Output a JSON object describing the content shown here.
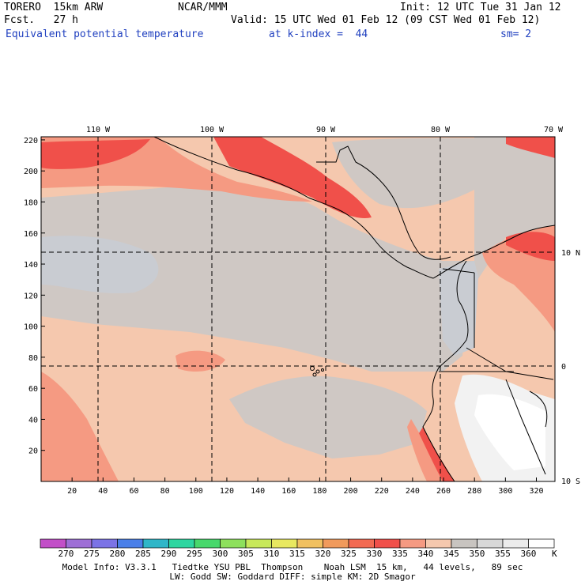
{
  "header": {
    "model": "TORERO  15km ARW",
    "center": "NCAR/MMM",
    "init": "Init: 12 UTC Tue 31 Jan 12",
    "fcst": "Fcst.   27 h",
    "valid": "Valid: 15 UTC Wed 01 Feb 12 (09 CST Wed 01 Feb 12)",
    "field": "Equivalent potential temperature",
    "level": "at k-index =  44",
    "smooth": "sm= 2"
  },
  "map": {
    "top_lon_labels": [
      "110 W",
      "100 W",
      "90 W",
      "80 W",
      "70 W"
    ],
    "right_lat_labels": [
      "10 N",
      "0",
      "10 S"
    ],
    "left_y_ticks": [
      "220",
      "200",
      "180",
      "160",
      "140",
      "120",
      "100",
      "80",
      "60",
      "40",
      "20"
    ],
    "bottom_x_ticks": [
      "20",
      "40",
      "60",
      "80",
      "100",
      "120",
      "140",
      "160",
      "180",
      "200",
      "220",
      "240",
      "260",
      "280",
      "300",
      "320"
    ]
  },
  "colorbar": {
    "labels": [
      "270",
      "275",
      "280",
      "285",
      "290",
      "295",
      "300",
      "305",
      "310",
      "315",
      "320",
      "325",
      "330",
      "335",
      "340",
      "345",
      "350",
      "355",
      "360"
    ],
    "unit": "K",
    "colors": [
      "#c24fc8",
      "#9e6fd6",
      "#7b73e6",
      "#4a7fe8",
      "#2fb6c8",
      "#2ed6a0",
      "#48d86c",
      "#8ee05c",
      "#c8e85a",
      "#e8e860",
      "#f0c060",
      "#f09a5c",
      "#f26a52",
      "#f0504a",
      "#f59a82",
      "#f5c8ae",
      "#c8c4c0",
      "#d8d8d8",
      "#ececec",
      "#ffffff"
    ]
  },
  "footer": {
    "line1": "Model Info: V3.3.1   Tiedtke YSU PBL  Thompson    Noah LSM  15 km,   44 levels,   89 sec",
    "line2": "LW: Godd SW: Goddard DIFF: simple KM: 2D Smagor"
  },
  "field_colors": {
    "base": "#f5c8ae",
    "gray": "#cfc8c4",
    "lightgray": "#c9ccd2",
    "pink": "#f59a82",
    "red": "#f0504a",
    "lightest": "#f2f2f2",
    "white": "#ffffff"
  }
}
